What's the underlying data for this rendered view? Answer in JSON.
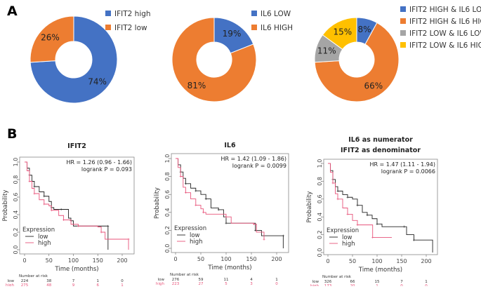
{
  "panel_labels": {
    "a": "A",
    "b": "B"
  },
  "colors": {
    "blue": "#4472C4",
    "orange": "#ED7D31",
    "gray": "#A5A5A5",
    "yellow": "#FFC000",
    "km_low": "#222222",
    "km_high": "#E8537A"
  },
  "chart_data": [
    {
      "type": "pie",
      "donut": true,
      "slices": [
        {
          "label": "IFIT2 high",
          "value": 74,
          "text": "74%",
          "color": "#4472C4"
        },
        {
          "label": "IFIT2 low",
          "value": 26,
          "text": "26%",
          "color": "#ED7D31"
        }
      ]
    },
    {
      "type": "pie",
      "donut": true,
      "slices": [
        {
          "label": "IL6 LOW",
          "value": 19,
          "text": "19%",
          "color": "#4472C4"
        },
        {
          "label": "IL6 HIGH",
          "value": 81,
          "text": "81%",
          "color": "#ED7D31"
        }
      ]
    },
    {
      "type": "pie",
      "donut": true,
      "slices": [
        {
          "label": "IFIT2 HIGH & IL6 LOW",
          "value": 8,
          "text": "8%",
          "color": "#4472C4"
        },
        {
          "label": "IFIT2 HIGH & IL6 HIGH",
          "value": 66,
          "text": "66%",
          "color": "#ED7D31"
        },
        {
          "label": "IFIT2 LOW & IL6 LOW",
          "value": 11,
          "text": "11%",
          "color": "#A5A5A5"
        },
        {
          "label": "IFIT2 LOW & IL6 HIGH",
          "value": 15,
          "text": "15%",
          "color": "#FFC000"
        }
      ]
    },
    {
      "type": "line",
      "subtype": "kaplan-meier",
      "title": [
        "IFIT2"
      ],
      "xlabel": "Time (months)",
      "ylabel": "Probability",
      "xlim": [
        0,
        215
      ],
      "ylim": [
        0,
        1
      ],
      "xticks": [
        "0",
        "50",
        "100",
        "150",
        "200"
      ],
      "yticks": [
        "0.0",
        "0.2",
        "0.4",
        "0.6",
        "0.8",
        "1.0"
      ],
      "hr": "HR = 1.26 (0.96 - 1.66)",
      "logrank": "logrank P = 0.093",
      "legend_title": "Expression",
      "legend_position": "bottom-left",
      "series": [
        {
          "name": "low",
          "points": [
            [
              0,
              1
            ],
            [
              5,
              0.93
            ],
            [
              10,
              0.85
            ],
            [
              15,
              0.78
            ],
            [
              20,
              0.72
            ],
            [
              30,
              0.66
            ],
            [
              40,
              0.61
            ],
            [
              50,
              0.55
            ],
            [
              55,
              0.48
            ],
            [
              60,
              0.46
            ],
            [
              75,
              0.46
            ],
            [
              90,
              0.36
            ],
            [
              95,
              0.33
            ],
            [
              100,
              0.27
            ],
            [
              171,
              0.27
            ],
            [
              171,
              0
            ]
          ]
        },
        {
          "name": "high",
          "points": [
            [
              0,
              1
            ],
            [
              5,
              0.9
            ],
            [
              10,
              0.78
            ],
            [
              15,
              0.7
            ],
            [
              20,
              0.64
            ],
            [
              30,
              0.57
            ],
            [
              40,
              0.52
            ],
            [
              50,
              0.5
            ],
            [
              55,
              0.45
            ],
            [
              70,
              0.39
            ],
            [
              80,
              0.34
            ],
            [
              95,
              0.29
            ],
            [
              110,
              0.27
            ],
            [
              150,
              0.26
            ],
            [
              157,
              0.2
            ],
            [
              165,
              0.12
            ],
            [
              213,
              0.12
            ],
            [
              213,
              0
            ]
          ]
        }
      ],
      "risk_header": "Number at risk",
      "risk": [
        {
          "label": "low",
          "values": [
            "224",
            "38",
            "7",
            "1",
            "0"
          ]
        },
        {
          "label": "high",
          "values": [
            "275",
            "48",
            "9",
            "6",
            "1"
          ]
        }
      ]
    },
    {
      "type": "line",
      "subtype": "kaplan-meier",
      "title": [
        "IL6"
      ],
      "xlabel": "Time (months)",
      "ylabel": "Probability",
      "xlim": [
        0,
        215
      ],
      "ylim": [
        0,
        1
      ],
      "xticks": [
        "0",
        "50",
        "100",
        "150",
        "200"
      ],
      "yticks": [
        "0.0",
        "0.2",
        "0.4",
        "0.6",
        "0.8",
        "1.0"
      ],
      "hr": "HR = 1.42 (1.09 - 1.86)",
      "logrank": "logrank P = 0.0099",
      "legend_title": "Expression",
      "legend_position": "bottom-left",
      "series": [
        {
          "name": "low",
          "points": [
            [
              0,
              1
            ],
            [
              5,
              0.93
            ],
            [
              10,
              0.85
            ],
            [
              15,
              0.78
            ],
            [
              20,
              0.72
            ],
            [
              30,
              0.67
            ],
            [
              40,
              0.64
            ],
            [
              50,
              0.6
            ],
            [
              60,
              0.55
            ],
            [
              70,
              0.45
            ],
            [
              85,
              0.43
            ],
            [
              95,
              0.35
            ],
            [
              100,
              0.28
            ],
            [
              157,
              0.28
            ],
            [
              158,
              0.2
            ],
            [
              170,
              0.14
            ],
            [
              213,
              0.14
            ],
            [
              213,
              0
            ]
          ]
        },
        {
          "name": "high",
          "points": [
            [
              0,
              1
            ],
            [
              5,
              0.9
            ],
            [
              10,
              0.8
            ],
            [
              15,
              0.68
            ],
            [
              20,
              0.62
            ],
            [
              30,
              0.55
            ],
            [
              40,
              0.48
            ],
            [
              50,
              0.44
            ],
            [
              55,
              0.4
            ],
            [
              60,
              0.38
            ],
            [
              100,
              0.35
            ],
            [
              110,
              0.28
            ],
            [
              155,
              0.27
            ],
            [
              160,
              0.18
            ],
            [
              175,
              0.1
            ]
          ]
        }
      ],
      "risk_header": "Number at risk",
      "risk": [
        {
          "label": "low",
          "values": [
            "276",
            "59",
            "11",
            "4",
            "1"
          ]
        },
        {
          "label": "high",
          "values": [
            "223",
            "27",
            "5",
            "3",
            "0"
          ]
        }
      ]
    },
    {
      "type": "line",
      "subtype": "kaplan-meier",
      "title": [
        "IL6 as numerator",
        "IFIT2 as denominator"
      ],
      "xlabel": "Time (months)",
      "ylabel": "Probability",
      "xlim": [
        0,
        215
      ],
      "ylim": [
        0,
        1
      ],
      "xticks": [
        "0",
        "50",
        "100",
        "150",
        "200"
      ],
      "yticks": [
        "0.0",
        "0.2",
        "0.4",
        "0.6",
        "0.8",
        "1.0"
      ],
      "hr": "HR = 1.47 (1.11 - 1.94)",
      "logrank": "logrank P = 0.0066",
      "legend_title": "Expression",
      "legend_position": "bottom-left",
      "series": [
        {
          "name": "low",
          "points": [
            [
              0,
              1
            ],
            [
              5,
              0.92
            ],
            [
              10,
              0.82
            ],
            [
              15,
              0.74
            ],
            [
              20,
              0.69
            ],
            [
              30,
              0.65
            ],
            [
              40,
              0.62
            ],
            [
              50,
              0.6
            ],
            [
              60,
              0.53
            ],
            [
              70,
              0.45
            ],
            [
              80,
              0.42
            ],
            [
              90,
              0.38
            ],
            [
              100,
              0.32
            ],
            [
              110,
              0.29
            ],
            [
              155,
              0.29
            ],
            [
              160,
              0.2
            ],
            [
              175,
              0.14
            ],
            [
              213,
              0.14
            ],
            [
              213,
              0
            ]
          ]
        },
        {
          "name": "high",
          "points": [
            [
              0,
              1
            ],
            [
              5,
              0.9
            ],
            [
              10,
              0.78
            ],
            [
              15,
              0.66
            ],
            [
              20,
              0.6
            ],
            [
              30,
              0.5
            ],
            [
              40,
              0.43
            ],
            [
              50,
              0.36
            ],
            [
              60,
              0.31
            ],
            [
              90,
              0.31
            ],
            [
              91,
              0.17
            ],
            [
              130,
              0.17
            ]
          ]
        }
      ],
      "risk_header": "Number at risk",
      "risk": [
        {
          "label": "low",
          "values": [
            "326",
            "66",
            "15",
            "7",
            "1"
          ]
        },
        {
          "label": "high",
          "values": [
            "173",
            "20",
            "1",
            "0",
            "0"
          ]
        }
      ]
    }
  ]
}
